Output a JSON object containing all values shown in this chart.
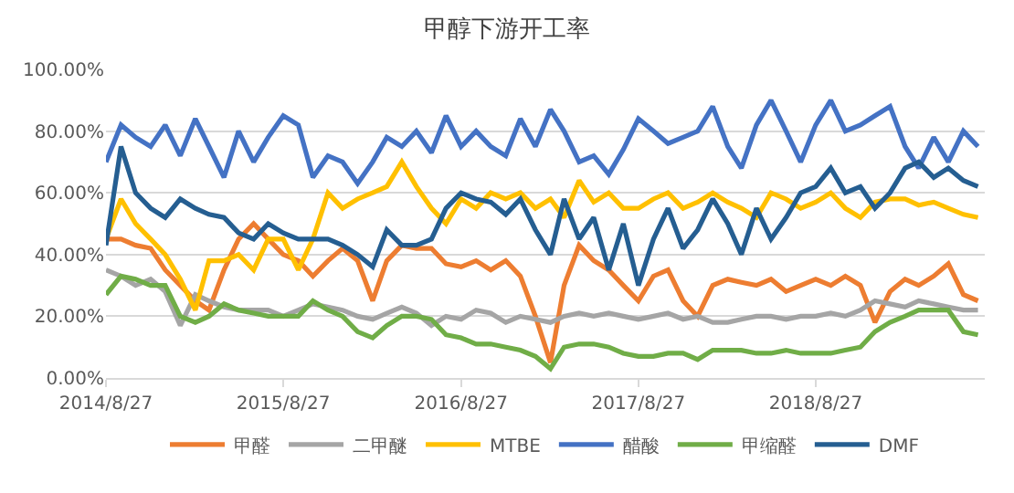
{
  "chart_data": {
    "type": "line",
    "title": "甲醇下游开工率",
    "x": [
      "2014-08-27",
      "2014-09-27",
      "2014-10-27",
      "2014-11-27",
      "2014-12-27",
      "2015-01-27",
      "2015-02-27",
      "2015-03-27",
      "2015-04-27",
      "2015-05-27",
      "2015-06-27",
      "2015-07-27",
      "2015-08-27",
      "2015-09-27",
      "2015-10-27",
      "2015-11-27",
      "2015-12-27",
      "2016-01-27",
      "2016-02-27",
      "2016-03-27",
      "2016-04-27",
      "2016-05-27",
      "2016-06-27",
      "2016-07-27",
      "2016-08-27",
      "2016-09-27",
      "2016-10-27",
      "2016-11-27",
      "2016-12-27",
      "2017-01-27",
      "2017-02-27",
      "2017-03-27",
      "2017-04-27",
      "2017-05-27",
      "2017-06-27",
      "2017-07-27",
      "2017-08-27",
      "2017-09-27",
      "2017-10-27",
      "2017-11-27",
      "2017-12-27",
      "2018-01-27",
      "2018-02-27",
      "2018-03-27",
      "2018-04-27",
      "2018-05-27",
      "2018-06-27",
      "2018-07-27",
      "2018-08-27",
      "2018-09-27",
      "2018-10-27",
      "2018-11-27",
      "2018-12-27",
      "2019-01-27",
      "2019-02-27",
      "2019-03-27",
      "2019-04-27",
      "2019-05-27",
      "2019-06-27",
      "2019-07-27"
    ],
    "series": [
      {
        "name": "甲醛",
        "color": "#ed7d31",
        "values": [
          45,
          45,
          43,
          42,
          35,
          30,
          25,
          22,
          35,
          45,
          50,
          45,
          40,
          38,
          33,
          38,
          42,
          38,
          25,
          38,
          43,
          42,
          42,
          37,
          36,
          38,
          35,
          38,
          33,
          20,
          5,
          30,
          43,
          38,
          35,
          30,
          25,
          33,
          35,
          25,
          20,
          30,
          32,
          31,
          30,
          32,
          28,
          30,
          32,
          30,
          33,
          30,
          18,
          28,
          32,
          30,
          33,
          37,
          27,
          25
        ]
      },
      {
        "name": "二甲醚",
        "color": "#a5a5a5",
        "values": [
          35,
          33,
          30,
          32,
          28,
          17,
          27,
          25,
          23,
          22,
          22,
          22,
          20,
          22,
          24,
          23,
          22,
          20,
          19,
          21,
          23,
          21,
          17,
          20,
          19,
          22,
          21,
          18,
          20,
          19,
          18,
          20,
          21,
          20,
          21,
          20,
          19,
          20,
          21,
          19,
          20,
          18,
          18,
          19,
          20,
          20,
          19,
          20,
          20,
          21,
          20,
          22,
          25,
          24,
          23,
          25,
          24,
          23,
          22,
          22
        ]
      },
      {
        "name": "MTBE",
        "color": "#ffc000",
        "values": [
          45,
          58,
          50,
          45,
          40,
          32,
          22,
          38,
          38,
          40,
          35,
          45,
          45,
          35,
          45,
          60,
          55,
          58,
          60,
          62,
          70,
          62,
          55,
          50,
          58,
          55,
          60,
          58,
          60,
          55,
          58,
          52,
          64,
          57,
          60,
          55,
          55,
          58,
          60,
          55,
          57,
          60,
          57,
          55,
          52,
          60,
          58,
          55,
          57,
          60,
          55,
          52,
          57,
          58,
          58,
          56,
          57,
          55,
          53,
          52
        ]
      },
      {
        "name": "醋酸",
        "color": "#4472c4",
        "values": [
          70,
          82,
          78,
          75,
          82,
          72,
          84,
          75,
          65,
          80,
          70,
          78,
          85,
          82,
          65,
          72,
          70,
          63,
          70,
          78,
          75,
          80,
          73,
          85,
          75,
          80,
          75,
          72,
          84,
          75,
          87,
          80,
          70,
          72,
          66,
          74,
          84,
          80,
          76,
          78,
          80,
          88,
          75,
          68,
          82,
          90,
          80,
          70,
          82,
          90,
          80,
          82,
          85,
          88,
          75,
          68,
          78,
          70,
          80,
          75
        ]
      },
      {
        "name": "甲缩醛",
        "color": "#70ad47",
        "values": [
          27,
          33,
          32,
          30,
          30,
          20,
          18,
          20,
          24,
          22,
          21,
          20,
          20,
          20,
          25,
          22,
          20,
          15,
          13,
          17,
          20,
          20,
          19,
          14,
          13,
          11,
          11,
          10,
          9,
          7,
          3,
          10,
          11,
          11,
          10,
          8,
          7,
          7,
          8,
          8,
          6,
          9,
          9,
          9,
          8,
          8,
          9,
          8,
          8,
          8,
          9,
          10,
          15,
          18,
          20,
          22,
          22,
          22,
          15,
          14
        ]
      },
      {
        "name": "DMF",
        "color": "#255e91",
        "values": [
          43,
          75,
          60,
          55,
          52,
          58,
          55,
          53,
          52,
          47,
          45,
          50,
          47,
          45,
          45,
          45,
          43,
          40,
          36,
          48,
          43,
          43,
          45,
          55,
          60,
          58,
          57,
          53,
          58,
          48,
          40,
          58,
          45,
          52,
          35,
          50,
          30,
          45,
          55,
          42,
          48,
          58,
          50,
          40,
          55,
          45,
          52,
          60,
          62,
          68,
          60,
          62,
          55,
          60,
          68,
          70,
          65,
          68,
          64,
          62
        ]
      }
    ],
    "xlim": [
      "2014-08-27",
      "2019-08-10"
    ],
    "xticks": [
      {
        "value": "2014-08-27",
        "label": "2014/8/27"
      },
      {
        "value": "2015-08-27",
        "label": "2015/8/27"
      },
      {
        "value": "2016-08-27",
        "label": "2016/8/27"
      },
      {
        "value": "2017-08-27",
        "label": "2017/8/27"
      },
      {
        "value": "2018-08-27",
        "label": "2018/8/27"
      }
    ],
    "ylim": [
      0,
      100
    ],
    "yticks": [
      {
        "value": 0,
        "label": "0.00%"
      },
      {
        "value": 20,
        "label": "20.00%"
      },
      {
        "value": 40,
        "label": "40.00%"
      },
      {
        "value": 60,
        "label": "60.00%"
      },
      {
        "value": 80,
        "label": "80.00%"
      },
      {
        "value": 100,
        "label": "100.00%"
      }
    ],
    "grid": "y",
    "legend": "bottom",
    "line_style": "solid",
    "marker": "none"
  }
}
